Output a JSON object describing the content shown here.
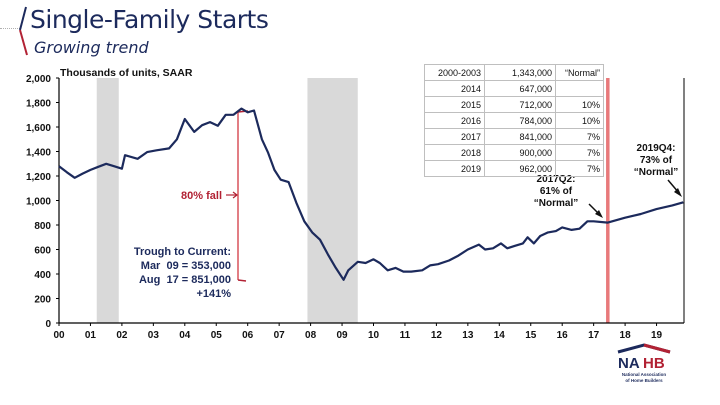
{
  "header": {
    "title": "Single-Family Starts",
    "subtitle": "Growing trend"
  },
  "table": {
    "rows": [
      [
        "2000-2003",
        "1,343,000",
        "“Normal”"
      ],
      [
        "2014",
        "647,000",
        ""
      ],
      [
        "2015",
        "712,000",
        "10%"
      ],
      [
        "2016",
        "784,000",
        "10%"
      ],
      [
        "2017",
        "841,000",
        "7%"
      ],
      [
        "2018",
        "900,000",
        "7%"
      ],
      [
        "2019",
        "962,000",
        "7%"
      ]
    ]
  },
  "annotations": {
    "fall": "80% fall",
    "trough_lines": [
      "Trough to Current:",
      "Mar  09 = 353,000",
      "Aug  17 = 851,000",
      "+141%"
    ],
    "q2_2017": [
      "2017Q2:",
      "61% of",
      "“Normal”"
    ],
    "q4_2019": [
      "2019Q4:",
      "73% of",
      "“Normal”"
    ]
  },
  "logo": {
    "text_a": "NA",
    "text_b": "HB",
    "line1": "National Association",
    "line2": "of Home Builders"
  },
  "colors": {
    "line": "#1c2a5c",
    "recession": "#d9d9d9",
    "accent_red": "#b22234",
    "vline": "#e8797b"
  },
  "chart_data": {
    "type": "line",
    "title": "Single-Family Starts",
    "ylabel": "Thousands of units, SAAR",
    "xlabel": "",
    "ylim": [
      0,
      2000
    ],
    "xlim": [
      2000,
      2019.85
    ],
    "yticks": [
      0,
      200,
      400,
      600,
      800,
      1000,
      1200,
      1400,
      1600,
      1800,
      2000
    ],
    "ytick_labels": [
      "0",
      "200",
      "400",
      "600",
      "800",
      "1,000",
      "1,200",
      "1,400",
      "1,600",
      "1,800",
      "2,000"
    ],
    "xtick_labels": [
      "00",
      "01",
      "02",
      "03",
      "04",
      "05",
      "06",
      "07",
      "08",
      "09",
      "10",
      "11",
      "12",
      "13",
      "14",
      "15",
      "16",
      "17",
      "18",
      "19"
    ],
    "recessions": [
      [
        2001.2,
        2001.9
      ],
      [
        2007.9,
        2009.5
      ]
    ],
    "vline_x": 2017.45,
    "series": [
      {
        "name": "Single-family starts",
        "x": [
          2000.0,
          2000.25,
          2000.5,
          2000.75,
          2001.0,
          2001.25,
          2001.5,
          2001.75,
          2002.0,
          2002.1,
          2002.5,
          2002.8,
          2003.1,
          2003.5,
          2003.75,
          2004.0,
          2004.3,
          2004.55,
          2004.8,
          2005.05,
          2005.3,
          2005.55,
          2005.8,
          2006.0,
          2006.2,
          2006.45,
          2006.65,
          2006.85,
          2007.05,
          2007.3,
          2007.55,
          2007.8,
          2008.05,
          2008.3,
          2008.55,
          2008.8,
          2009.05,
          2009.2,
          2009.5,
          2009.75,
          2010.0,
          2010.2,
          2010.45,
          2010.7,
          2010.95,
          2011.2,
          2011.55,
          2011.8,
          2012.05,
          2012.4,
          2012.7,
          2013.0,
          2013.35,
          2013.55,
          2013.8,
          2014.05,
          2014.25,
          2014.5,
          2014.75,
          2014.9,
          2015.1,
          2015.3,
          2015.55,
          2015.8,
          2016.0,
          2016.3,
          2016.55,
          2016.8,
          2017.0,
          2017.45,
          2018.0,
          2018.5,
          2019.0,
          2019.5,
          2019.85
        ],
        "y": [
          1280,
          1230,
          1185,
          1220,
          1250,
          1275,
          1300,
          1280,
          1260,
          1370,
          1340,
          1395,
          1410,
          1425,
          1500,
          1665,
          1560,
          1615,
          1640,
          1610,
          1700,
          1700,
          1750,
          1720,
          1735,
          1500,
          1390,
          1250,
          1170,
          1150,
          980,
          830,
          740,
          680,
          560,
          450,
          353,
          430,
          500,
          490,
          520,
          490,
          430,
          450,
          420,
          420,
          430,
          470,
          480,
          510,
          550,
          600,
          640,
          600,
          610,
          650,
          610,
          630,
          650,
          700,
          650,
          710,
          740,
          750,
          780,
          760,
          770,
          830,
          830,
          820,
          860,
          890,
          930,
          960,
          985
        ]
      }
    ]
  }
}
